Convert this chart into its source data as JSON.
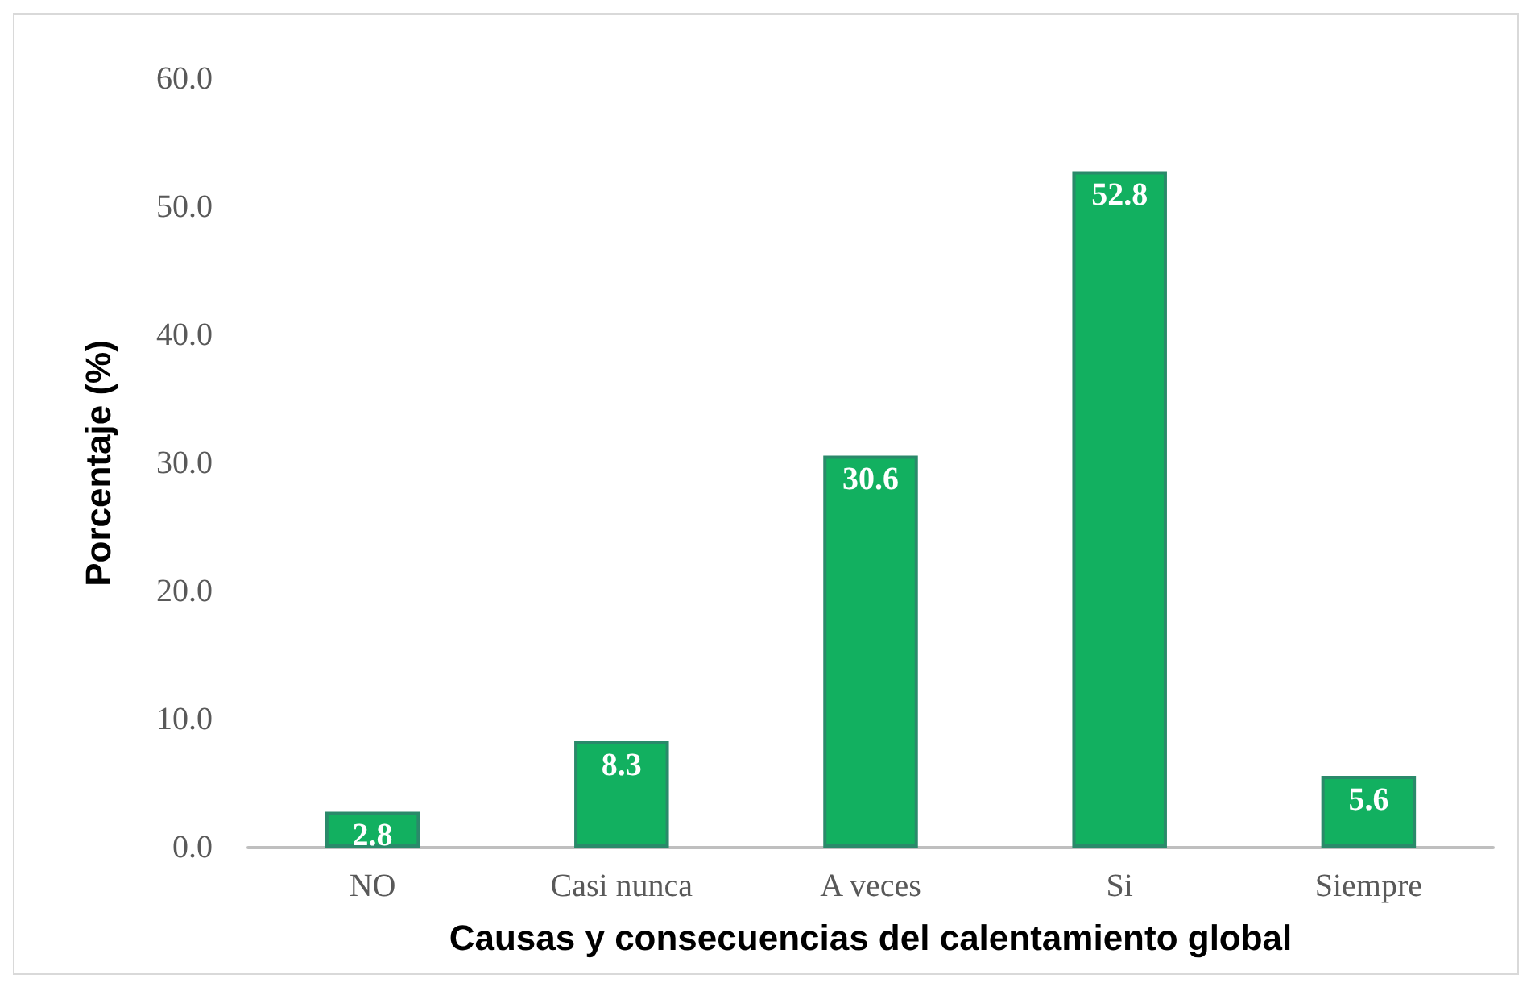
{
  "chart_data": {
    "type": "bar",
    "xlabel": "Causas y consecuencias del calentamiento global",
    "ylabel": "Porcentaje (%)",
    "categories": [
      "NO",
      "Casi nunca",
      "A veces",
      "Si",
      "Siempre"
    ],
    "values": [
      2.8,
      8.3,
      30.6,
      52.8,
      5.6
    ],
    "color": "#12b060",
    "ylim": [
      0,
      60
    ],
    "yticks": [
      {
        "value": 0,
        "label": "0.0"
      },
      {
        "value": 10,
        "label": "10.0"
      },
      {
        "value": 20,
        "label": "20.0"
      },
      {
        "value": 30,
        "label": "30.0"
      },
      {
        "value": 40,
        "label": "40.0"
      },
      {
        "value": 50,
        "label": "50.0"
      },
      {
        "value": 60,
        "label": "60.0"
      }
    ],
    "grid": false,
    "data_labels": true
  }
}
